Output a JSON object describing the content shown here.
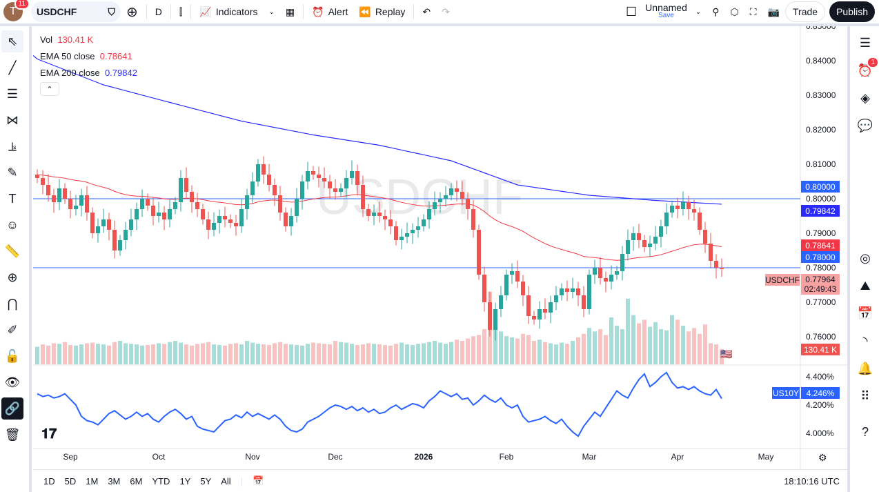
{
  "topbar": {
    "avatar_letter": "T",
    "notifications": "11",
    "symbol": "USDCHF",
    "interval": "D",
    "indicators": "Indicators",
    "alert": "Alert",
    "replay": "Replay",
    "layout_name": "Unnamed",
    "layout_save": "Save",
    "trade": "Trade",
    "publish": "Publish"
  },
  "legend": {
    "vol_label": "Vol",
    "vol_value": "130.41 K",
    "ema50_label": "EMA 50 close",
    "ema50_value": "0.78641",
    "ema200_label": "EMA 200 close",
    "ema200_value": "0.79842"
  },
  "watermark": "USDCHF",
  "price_labels": {
    "line_800": "0.80000",
    "ema200": "0.79842",
    "ema50": "0.78641",
    "line_780": "0.78000",
    "last_symbol": "USDCHF",
    "last": "0.77964",
    "countdown": "02:49:43",
    "volume": "130.41 K",
    "us10y_symbol": "US10Y",
    "us10y_value": "4.246%"
  },
  "right_sidebar": {
    "alerts_badge": "1"
  },
  "bottombar": {
    "ranges": [
      "1D",
      "5D",
      "1M",
      "3M",
      "6M",
      "YTD",
      "1Y",
      "5Y",
      "All"
    ],
    "clock": "18:10:16 UTC"
  },
  "colors": {
    "up": "#26a69a",
    "down": "#ef5350",
    "ema50": "#f23645",
    "ema200": "#2a2aff",
    "hline": "#2962ff",
    "us10y": "#2962ff"
  },
  "chart_data": {
    "type": "candlestick",
    "symbol": "USDCHF",
    "interval": "D",
    "price_ticks": [
      "0.85000",
      "0.84000",
      "0.83000",
      "0.82000",
      "0.81000",
      "0.80000",
      "0.79000",
      "0.78000",
      "0.77000",
      "0.76000"
    ],
    "price_tick_values": [
      0.85,
      0.84,
      0.83,
      0.82,
      0.81,
      0.8,
      0.79,
      0.78,
      0.77,
      0.76
    ],
    "time_ticks": [
      "Sep",
      "Oct",
      "Nov",
      "Dec",
      "2026",
      "Feb",
      "Mar",
      "Apr",
      "May"
    ],
    "time_tick_bar_index": [
      6,
      22,
      39,
      54,
      70,
      85,
      100,
      116,
      132
    ],
    "horizontal_lines": [
      0.8,
      0.78
    ],
    "closes": [
      0.806,
      0.804,
      0.801,
      0.799,
      0.803,
      0.8,
      0.797,
      0.798,
      0.801,
      0.796,
      0.79,
      0.792,
      0.794,
      0.791,
      0.785,
      0.788,
      0.791,
      0.794,
      0.797,
      0.8,
      0.798,
      0.795,
      0.796,
      0.794,
      0.797,
      0.799,
      0.806,
      0.802,
      0.799,
      0.797,
      0.794,
      0.791,
      0.793,
      0.795,
      0.794,
      0.793,
      0.792,
      0.797,
      0.801,
      0.805,
      0.81,
      0.807,
      0.804,
      0.801,
      0.796,
      0.792,
      0.795,
      0.8,
      0.805,
      0.808,
      0.807,
      0.806,
      0.805,
      0.803,
      0.802,
      0.803,
      0.806,
      0.808,
      0.804,
      0.797,
      0.795,
      0.796,
      0.795,
      0.794,
      0.792,
      0.788,
      0.789,
      0.79,
      0.791,
      0.792,
      0.794,
      0.797,
      0.799,
      0.8,
      0.801,
      0.803,
      0.802,
      0.8,
      0.797,
      0.791,
      0.778,
      0.77,
      0.762,
      0.768,
      0.772,
      0.778,
      0.779,
      0.776,
      0.772,
      0.766,
      0.765,
      0.768,
      0.767,
      0.77,
      0.772,
      0.774,
      0.773,
      0.774,
      0.772,
      0.768,
      0.778,
      0.78,
      0.777,
      0.776,
      0.778,
      0.779,
      0.784,
      0.788,
      0.79,
      0.788,
      0.786,
      0.787,
      0.789,
      0.792,
      0.796,
      0.798,
      0.797,
      0.799,
      0.797,
      0.796,
      0.791,
      0.787,
      0.782,
      0.78,
      0.77964
    ],
    "ema200_points": {
      "index": [
        0,
        12,
        25,
        37,
        50,
        62,
        75,
        87,
        100,
        112,
        124
      ],
      "value": [
        0.8405,
        0.833,
        0.8275,
        0.8225,
        0.8185,
        0.8155,
        0.811,
        0.804,
        0.801,
        0.7995,
        0.79842
      ]
    },
    "ema50_seed": 0.807,
    "volume_k": [
      150,
      170,
      160,
      180,
      175,
      190,
      165,
      160,
      170,
      180,
      185,
      175,
      170,
      160,
      190,
      200,
      180,
      175,
      170,
      160,
      165,
      170,
      180,
      175,
      190,
      200,
      185,
      170,
      160,
      175,
      180,
      190,
      170,
      165,
      160,
      175,
      180,
      170,
      200,
      185,
      175,
      170,
      165,
      180,
      190,
      175,
      170,
      165,
      160,
      175,
      185,
      180,
      175,
      170,
      200,
      190,
      185,
      175,
      165,
      170,
      180,
      175,
      170,
      165,
      160,
      175,
      185,
      170,
      165,
      175,
      180,
      190,
      200,
      185,
      175,
      190,
      210,
      200,
      220,
      240,
      250,
      300,
      620,
      350,
      280,
      240,
      230,
      220,
      260,
      250,
      200,
      210,
      190,
      180,
      170,
      185,
      175,
      200,
      230,
      260,
      310,
      280,
      300,
      250,
      400,
      330,
      300,
      560,
      420,
      350,
      380,
      320,
      360,
      300,
      290,
      420,
      380,
      330,
      280,
      310,
      260,
      340,
      180,
      170,
      130.41
    ],
    "us10y": {
      "ticks": [
        "4.400%",
        "4.200%",
        "4.000%"
      ],
      "tick_values": [
        4.4,
        4.2,
        4.0
      ],
      "values": [
        4.28,
        4.26,
        4.27,
        4.25,
        4.26,
        4.28,
        4.24,
        4.2,
        4.12,
        4.09,
        4.08,
        4.06,
        4.1,
        4.14,
        4.16,
        4.13,
        4.1,
        4.12,
        4.15,
        4.12,
        4.14,
        4.1,
        4.08,
        4.12,
        4.15,
        4.17,
        4.14,
        4.1,
        4.12,
        4.05,
        4.03,
        4.02,
        4.01,
        4.05,
        4.09,
        4.1,
        4.13,
        4.11,
        4.15,
        4.12,
        4.14,
        4.12,
        4.1,
        4.13,
        4.1,
        4.05,
        4.02,
        4.01,
        4.03,
        4.08,
        4.1,
        4.12,
        4.15,
        4.18,
        4.2,
        4.19,
        4.17,
        4.19,
        4.16,
        4.18,
        4.15,
        4.17,
        4.14,
        4.15,
        4.18,
        4.2,
        4.17,
        4.19,
        4.21,
        4.2,
        4.18,
        4.23,
        4.26,
        4.3,
        4.28,
        4.26,
        4.28,
        4.24,
        4.25,
        4.2,
        4.23,
        4.27,
        4.24,
        4.22,
        4.25,
        4.2,
        4.18,
        4.2,
        4.12,
        4.08,
        4.09,
        4.1,
        4.12,
        4.09,
        4.07,
        4.1,
        4.05,
        4.01,
        3.98,
        4.05,
        4.1,
        4.15,
        4.12,
        4.18,
        4.24,
        4.3,
        4.27,
        4.25,
        4.32,
        4.38,
        4.42,
        4.33,
        4.36,
        4.4,
        4.43,
        4.36,
        4.32,
        4.33,
        4.31,
        4.33,
        4.3,
        4.28,
        4.27,
        4.31,
        4.246
      ]
    }
  }
}
